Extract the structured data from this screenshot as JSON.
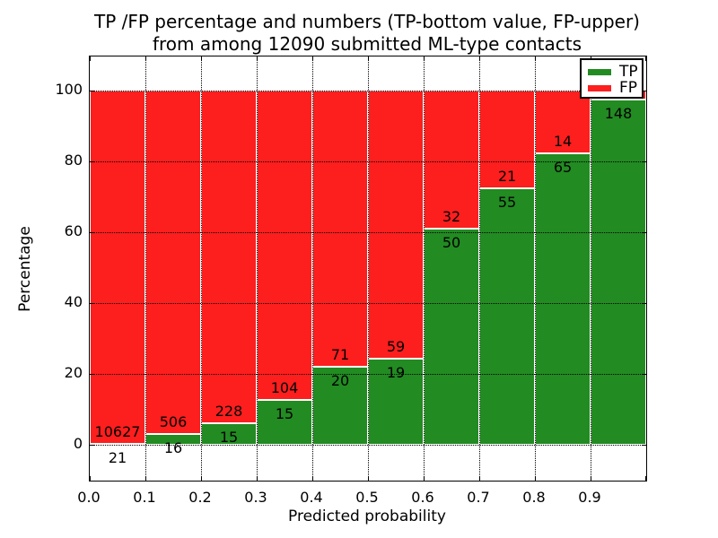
{
  "chart_data": {
    "type": "bar",
    "stacked": true,
    "orientation": "vertical",
    "title_line1": "TP /FP percentage and numbers (TP-bottom value, FP-upper)",
    "title_line2": "from among 12090 submitted ML-type contacts",
    "total_contacts": "12090",
    "xlabel": "Predicted probability",
    "ylabel": "Percentage",
    "xlim": [
      0.0,
      1.0
    ],
    "ylim": [
      -10,
      110
    ],
    "grid": "dotted, drawn above bars",
    "x_tick_labels": [
      "0.0",
      "0.1",
      "0.2",
      "0.3",
      "0.4",
      "0.5",
      "0.6",
      "0.7",
      "0.8",
      "0.9"
    ],
    "y_tick_labels": [
      "0",
      "20",
      "40",
      "60",
      "80",
      "100"
    ],
    "y_tick_values": [
      0,
      20,
      40,
      60,
      80,
      100
    ],
    "series": [
      {
        "name": "TP",
        "color": "#228B22",
        "position": "bottom"
      },
      {
        "name": "FP",
        "color": "#fd1e1e",
        "position": "top"
      }
    ],
    "legend": {
      "position": "upper right",
      "entries": [
        "TP",
        "FP"
      ]
    },
    "bar_edge_color": "#ffffff",
    "bins": [
      {
        "range": [
          0.0,
          0.1
        ],
        "tp": 21,
        "fp": 10627,
        "tp_pct": 0.2,
        "tp_label": "21",
        "fp_label": "10627"
      },
      {
        "range": [
          0.1,
          0.2
        ],
        "tp": 16,
        "fp": 506,
        "tp_pct": 3.1,
        "tp_label": "16",
        "fp_label": "506"
      },
      {
        "range": [
          0.2,
          0.3
        ],
        "tp": 15,
        "fp": 228,
        "tp_pct": 6.2,
        "tp_label": "15",
        "fp_label": "228"
      },
      {
        "range": [
          0.3,
          0.4
        ],
        "tp": 15,
        "fp": 104,
        "tp_pct": 12.6,
        "tp_label": "15",
        "fp_label": "104"
      },
      {
        "range": [
          0.4,
          0.5
        ],
        "tp": 20,
        "fp": 71,
        "tp_pct": 22.0,
        "tp_label": "20",
        "fp_label": "71"
      },
      {
        "range": [
          0.5,
          0.6
        ],
        "tp": 19,
        "fp": 59,
        "tp_pct": 24.4,
        "tp_label": "19",
        "fp_label": "59"
      },
      {
        "range": [
          0.6,
          0.7
        ],
        "tp": 50,
        "fp": 32,
        "tp_pct": 61.0,
        "tp_label": "50",
        "fp_label": "32"
      },
      {
        "range": [
          0.7,
          0.8
        ],
        "tp": 55,
        "fp": 21,
        "tp_pct": 72.4,
        "tp_label": "55",
        "fp_label": "21"
      },
      {
        "range": [
          0.8,
          0.9
        ],
        "tp": 65,
        "fp": 14,
        "tp_pct": 82.3,
        "tp_label": "65",
        "fp_label": "14"
      },
      {
        "range": [
          0.9,
          1.0
        ],
        "tp": 148,
        "fp": null,
        "tp_pct": 97.4,
        "tp_label": "148",
        "fp_label": ""
      }
    ]
  }
}
